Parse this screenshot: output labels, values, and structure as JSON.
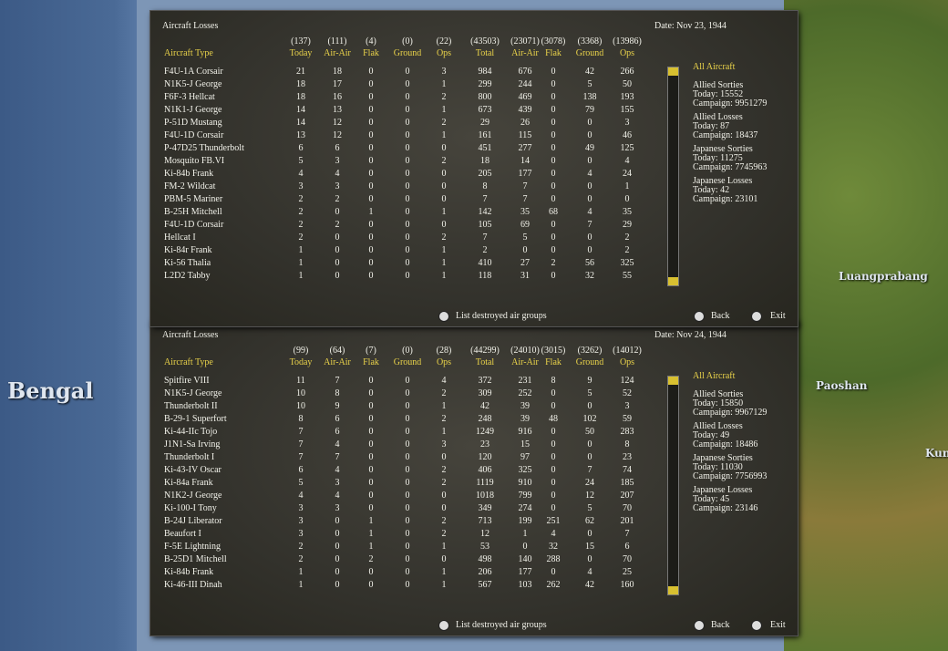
{
  "map": {
    "labels": [
      "Bengal",
      "Luangprabang",
      "Paoshan",
      "Kunmi"
    ]
  },
  "panels": [
    {
      "title": "Aircraft Losses",
      "date": "Date: Nov 23, 1944",
      "totals": [
        "(137)",
        "(111)",
        "(4)",
        "(0)",
        "(22)",
        "(43503)",
        "(23071)",
        "(3078)",
        "(3368)",
        "(13986)"
      ],
      "columns": [
        "Aircraft Type",
        "Today",
        "Air-Air",
        "Flak",
        "Ground",
        "Ops",
        "Total",
        "Air-Air",
        "Flak",
        "Ground",
        "Ops"
      ],
      "rows": [
        {
          "type": "F4U-1A Corsair",
          "values": [
            21,
            18,
            0,
            0,
            3,
            984,
            676,
            0,
            42,
            266
          ]
        },
        {
          "type": "N1K5-J George",
          "values": [
            18,
            17,
            0,
            0,
            1,
            299,
            244,
            0,
            5,
            50
          ]
        },
        {
          "type": "F6F-3 Hellcat",
          "values": [
            18,
            16,
            0,
            0,
            2,
            800,
            469,
            0,
            138,
            193
          ]
        },
        {
          "type": "N1K1-J George",
          "values": [
            14,
            13,
            0,
            0,
            1,
            673,
            439,
            0,
            79,
            155
          ]
        },
        {
          "type": "P-51D Mustang",
          "values": [
            14,
            12,
            0,
            0,
            2,
            29,
            26,
            0,
            0,
            3
          ]
        },
        {
          "type": "F4U-1D Corsair",
          "values": [
            13,
            12,
            0,
            0,
            1,
            161,
            115,
            0,
            0,
            46
          ]
        },
        {
          "type": "P-47D25 Thunderbolt",
          "values": [
            6,
            6,
            0,
            0,
            0,
            451,
            277,
            0,
            49,
            125
          ]
        },
        {
          "type": "Mosquito FB.VI",
          "values": [
            5,
            3,
            0,
            0,
            2,
            18,
            14,
            0,
            0,
            4
          ]
        },
        {
          "type": "Ki-84b Frank",
          "values": [
            4,
            4,
            0,
            0,
            0,
            205,
            177,
            0,
            4,
            24
          ]
        },
        {
          "type": "FM-2 Wildcat",
          "values": [
            3,
            3,
            0,
            0,
            0,
            8,
            7,
            0,
            0,
            1
          ]
        },
        {
          "type": "PBM-5 Mariner",
          "values": [
            2,
            2,
            0,
            0,
            0,
            7,
            7,
            0,
            0,
            0
          ]
        },
        {
          "type": "B-25H Mitchell",
          "values": [
            2,
            0,
            1,
            0,
            1,
            142,
            35,
            68,
            4,
            35
          ]
        },
        {
          "type": "F4U-1D Corsair",
          "values": [
            2,
            2,
            0,
            0,
            0,
            105,
            69,
            0,
            7,
            29
          ]
        },
        {
          "type": "Hellcat I",
          "values": [
            2,
            0,
            0,
            0,
            2,
            7,
            5,
            0,
            0,
            2
          ]
        },
        {
          "type": "Ki-84r Frank",
          "values": [
            1,
            0,
            0,
            0,
            1,
            2,
            0,
            0,
            0,
            2
          ]
        },
        {
          "type": "Ki-56 Thalia",
          "values": [
            1,
            0,
            0,
            0,
            1,
            410,
            27,
            2,
            56,
            325
          ]
        },
        {
          "type": "L2D2 Tabby",
          "values": [
            1,
            0,
            0,
            0,
            1,
            118,
            31,
            0,
            32,
            55
          ]
        }
      ],
      "sidebar": [
        "All Aircraft",
        "Allied Sorties",
        "Today:   15552",
        "Campaign: 9951279",
        "Allied Losses",
        "Today:   87",
        "Campaign: 18437",
        "Japanese Sorties",
        "Today:   11275",
        "Campaign: 7745963",
        "Japanese Losses",
        "Today:   42",
        "Campaign: 23101"
      ],
      "buttons": [
        "List destroyed air groups",
        "Back",
        "Exit"
      ]
    },
    {
      "title": "Aircraft Losses",
      "date": "Date: Nov 24, 1944",
      "totals": [
        "(99)",
        "(64)",
        "(7)",
        "(0)",
        "(28)",
        "(44299)",
        "(24010)",
        "(3015)",
        "(3262)",
        "(14012)"
      ],
      "columns": [
        "Aircraft Type",
        "Today",
        "Air-Air",
        "Flak",
        "Ground",
        "Ops",
        "Total",
        "Air-Air",
        "Flak",
        "Ground",
        "Ops"
      ],
      "rows": [
        {
          "type": "Spitfire VIII",
          "values": [
            11,
            7,
            0,
            0,
            4,
            372,
            231,
            8,
            9,
            124
          ]
        },
        {
          "type": "N1K5-J George",
          "values": [
            10,
            8,
            0,
            0,
            2,
            309,
            252,
            0,
            5,
            52
          ]
        },
        {
          "type": "Thunderbolt II",
          "values": [
            10,
            9,
            0,
            0,
            1,
            42,
            39,
            0,
            0,
            3
          ]
        },
        {
          "type": "B-29-1 Superfort",
          "values": [
            8,
            6,
            0,
            0,
            2,
            248,
            39,
            48,
            102,
            59
          ]
        },
        {
          "type": "Ki-44-IIc Tojo",
          "values": [
            7,
            6,
            0,
            0,
            1,
            1249,
            916,
            0,
            50,
            283
          ]
        },
        {
          "type": "J1N1-Sa Irving",
          "values": [
            7,
            4,
            0,
            0,
            3,
            23,
            15,
            0,
            0,
            8
          ]
        },
        {
          "type": "Thunderbolt I",
          "values": [
            7,
            7,
            0,
            0,
            0,
            120,
            97,
            0,
            0,
            23
          ]
        },
        {
          "type": "Ki-43-IV Oscar",
          "values": [
            6,
            4,
            0,
            0,
            2,
            406,
            325,
            0,
            7,
            74
          ]
        },
        {
          "type": "Ki-84a Frank",
          "values": [
            5,
            3,
            0,
            0,
            2,
            1119,
            910,
            0,
            24,
            185
          ]
        },
        {
          "type": "N1K2-J George",
          "values": [
            4,
            4,
            0,
            0,
            0,
            1018,
            799,
            0,
            12,
            207
          ]
        },
        {
          "type": "Ki-100-I Tony",
          "values": [
            3,
            3,
            0,
            0,
            0,
            349,
            274,
            0,
            5,
            70
          ]
        },
        {
          "type": "B-24J Liberator",
          "values": [
            3,
            0,
            1,
            0,
            2,
            713,
            199,
            251,
            62,
            201
          ]
        },
        {
          "type": "Beaufort I",
          "values": [
            3,
            0,
            1,
            0,
            2,
            12,
            1,
            4,
            0,
            7
          ]
        },
        {
          "type": "F-5E Lightning",
          "values": [
            2,
            0,
            1,
            0,
            1,
            53,
            0,
            32,
            15,
            6
          ]
        },
        {
          "type": "B-25D1 Mitchell",
          "values": [
            2,
            0,
            2,
            0,
            0,
            498,
            140,
            288,
            0,
            70
          ]
        },
        {
          "type": "Ki-84b Frank",
          "values": [
            1,
            0,
            0,
            0,
            1,
            206,
            177,
            0,
            4,
            25
          ]
        },
        {
          "type": "Ki-46-III Dinah",
          "values": [
            1,
            0,
            0,
            0,
            1,
            567,
            103,
            262,
            42,
            160
          ]
        }
      ],
      "sidebar": [
        "All Aircraft",
        "Allied Sorties",
        "Today:   15850",
        "Campaign: 9967129",
        "Allied Losses",
        "Today:   49",
        "Campaign: 18486",
        "Japanese Sorties",
        "Today:   11030",
        "Campaign: 7756993",
        "Japanese Losses",
        "Today:   45",
        "Campaign: 23146"
      ],
      "buttons": [
        "List destroyed air groups",
        "Back",
        "Exit"
      ]
    }
  ]
}
